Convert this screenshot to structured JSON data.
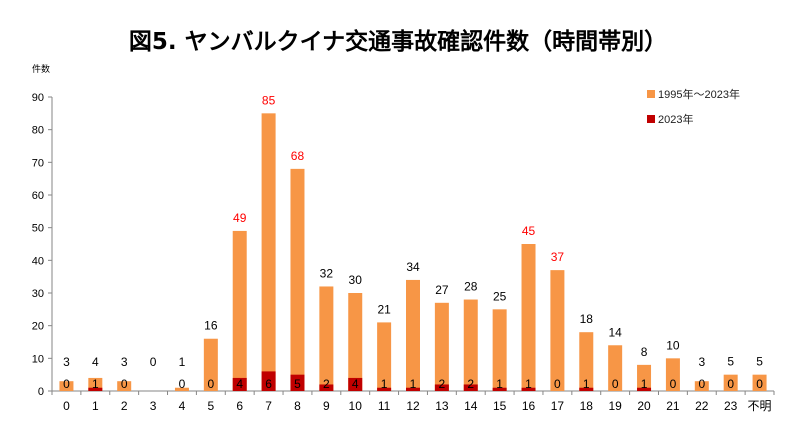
{
  "chart_data": {
    "type": "bar",
    "title": "図5. ヤンバルクイナ交通事故確認件数（時間帯別）",
    "ylabel": "件数",
    "xlabel": "",
    "ylim": [
      0,
      90
    ],
    "yticks": [
      0,
      10,
      20,
      30,
      40,
      50,
      60,
      70,
      80,
      90
    ],
    "grid": false,
    "legend_position": "top-right",
    "categories": [
      "0",
      "1",
      "2",
      "3",
      "4",
      "5",
      "6",
      "7",
      "8",
      "9",
      "10",
      "11",
      "12",
      "13",
      "14",
      "15",
      "16",
      "17",
      "18",
      "19",
      "20",
      "21",
      "22",
      "23",
      "不明"
    ],
    "series": [
      {
        "name": "1995年～2023年",
        "color": "#F79646",
        "values": [
          3,
          4,
          3,
          0,
          1,
          16,
          49,
          85,
          68,
          32,
          30,
          21,
          34,
          27,
          28,
          25,
          45,
          37,
          18,
          14,
          8,
          10,
          3,
          5,
          5
        ]
      },
      {
        "name": "2023年",
        "color": "#C00000",
        "values": [
          0,
          1,
          0,
          null,
          0,
          0,
          4,
          6,
          5,
          2,
          4,
          1,
          1,
          2,
          2,
          1,
          1,
          0,
          1,
          0,
          1,
          0,
          0,
          0,
          0
        ]
      }
    ],
    "highlight_label_color": "#FF0000",
    "highlight_threshold": 37
  }
}
